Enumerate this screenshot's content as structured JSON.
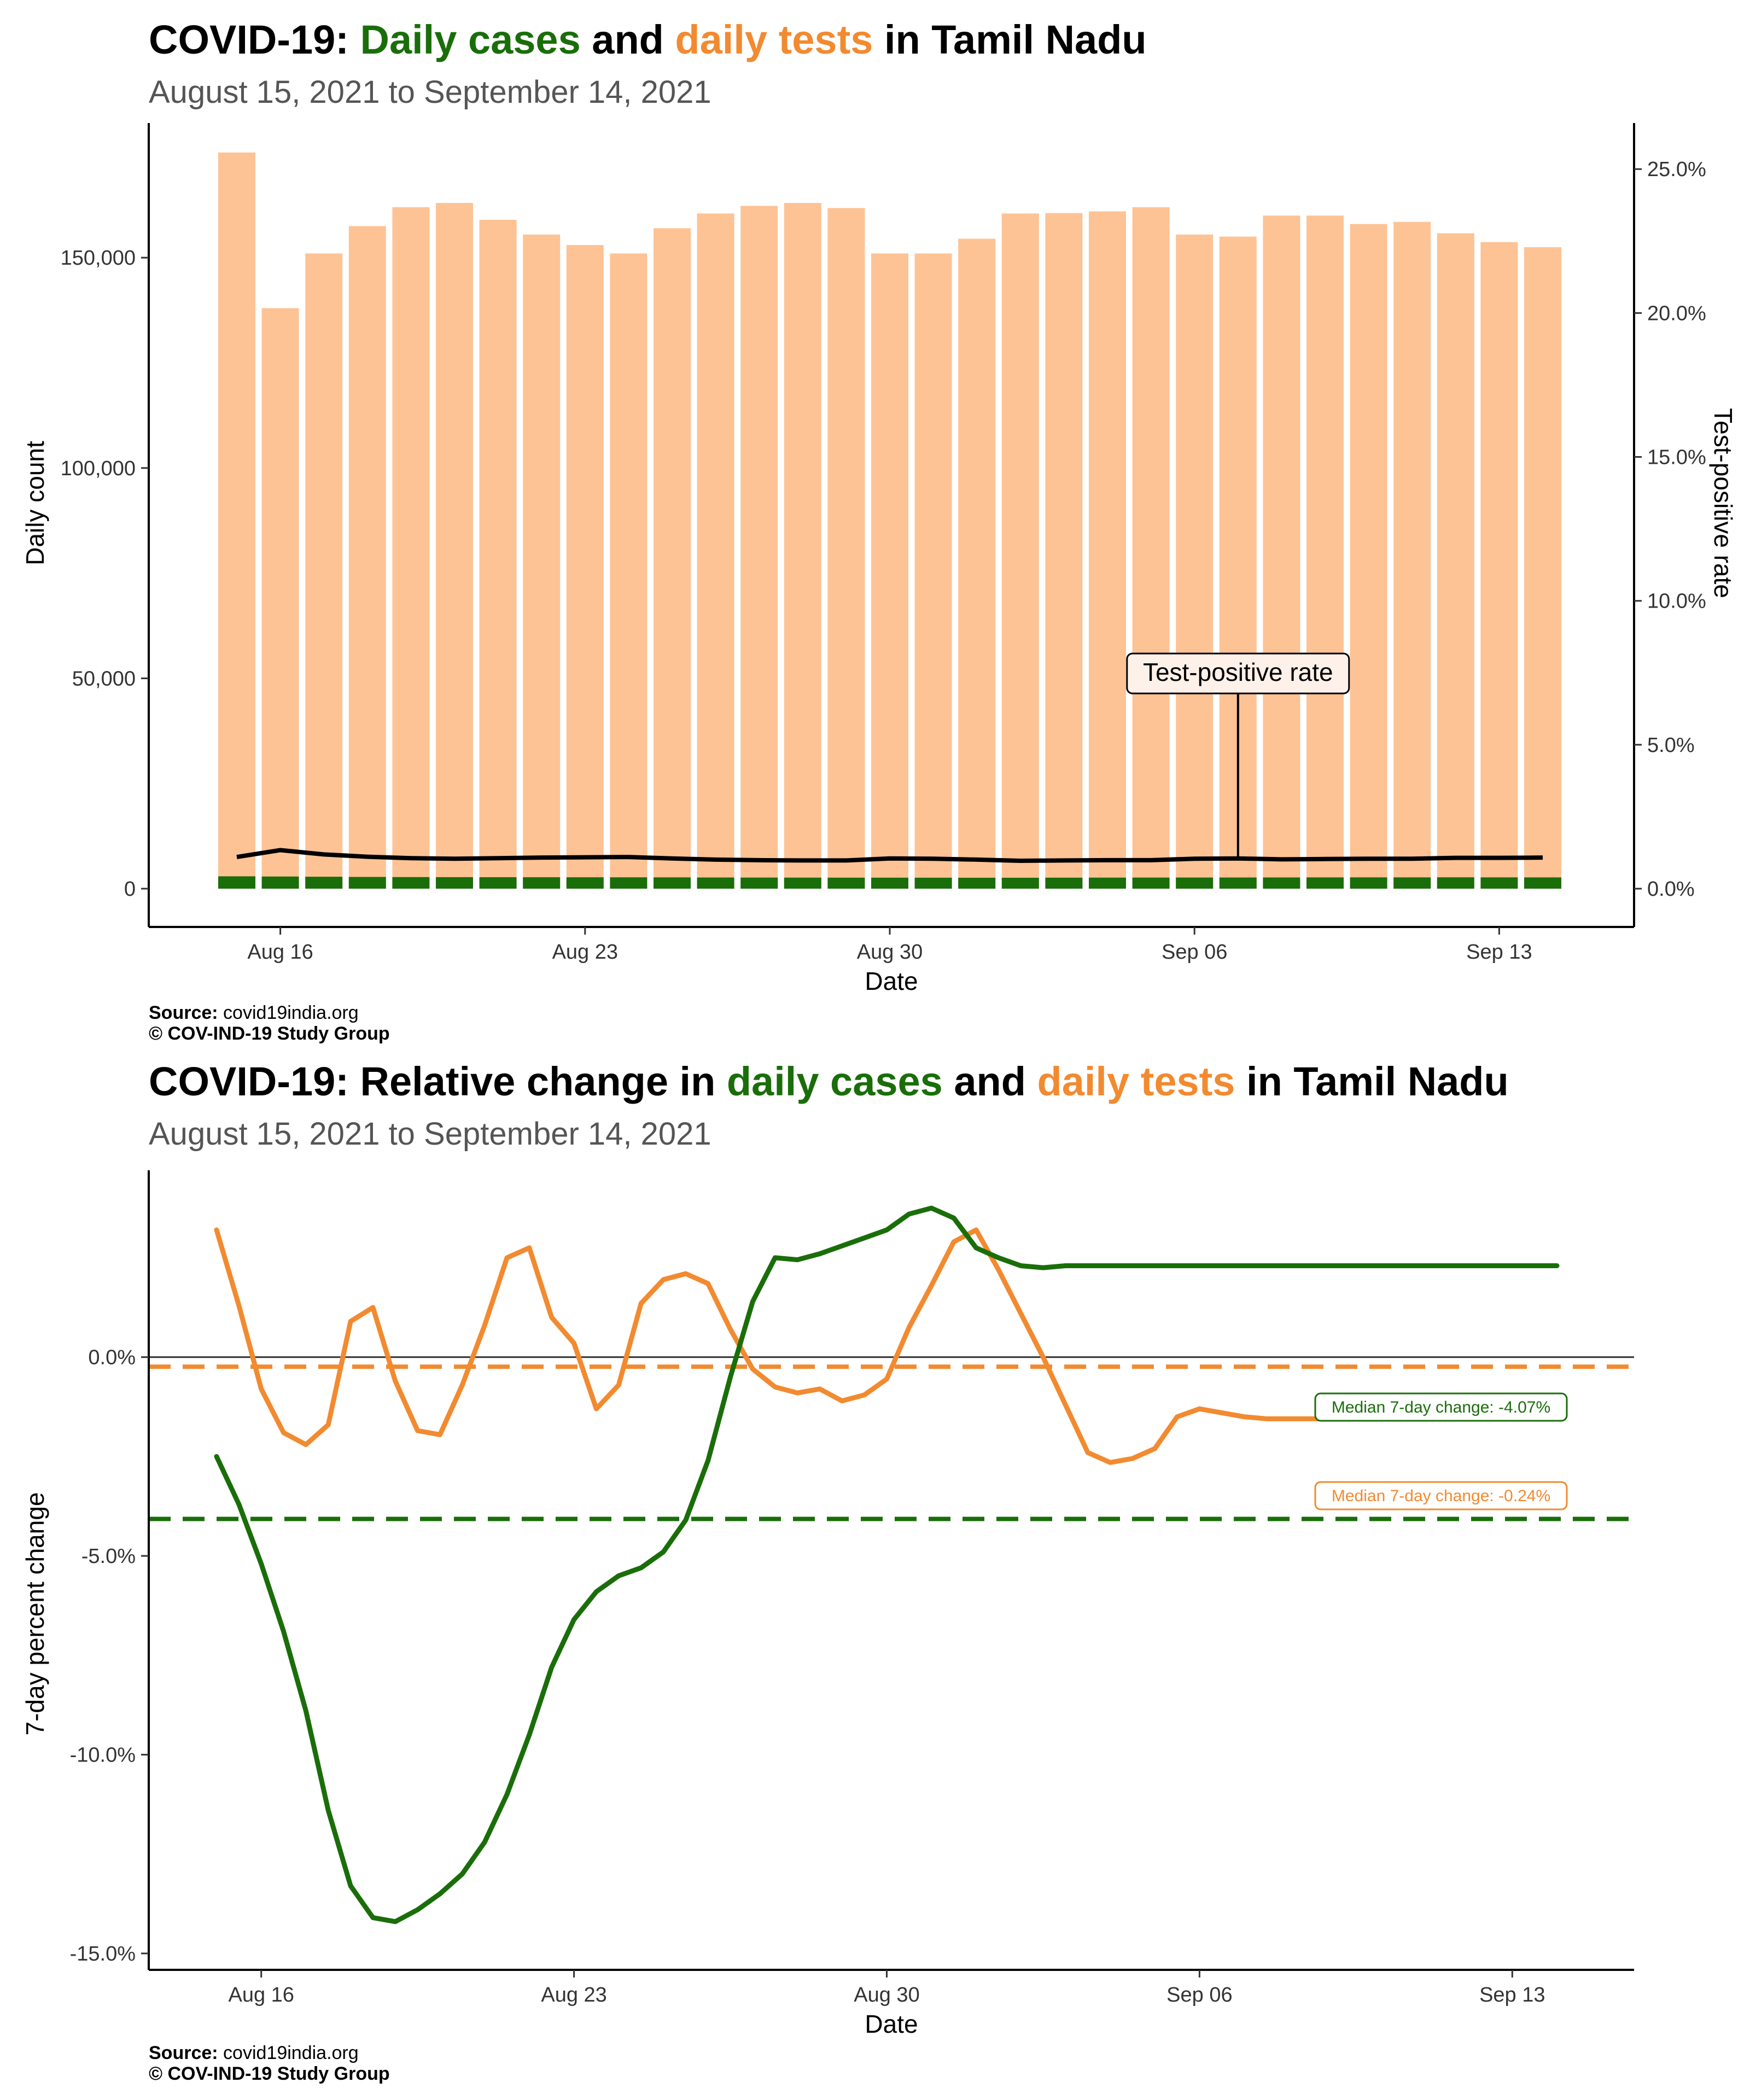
{
  "panel1": {
    "title_prefix": "COVID-19:",
    "title_cases": "Daily cases",
    "title_and": "and",
    "title_tests": "daily tests",
    "title_suffix": "in Tamil Nadu",
    "subtitle": "August 15, 2021 to September 14, 2021",
    "source_label": "Source:",
    "source_value": "covid19india.org",
    "copyright": "© COV-IND-19 Study Group"
  },
  "panel2": {
    "title_prefix": "COVID-19: Relative change in",
    "title_cases": "daily cases",
    "title_and": "and",
    "title_tests": "daily tests",
    "title_suffix": "in Tamil Nadu",
    "subtitle": "August 15, 2021 to September 14, 2021",
    "source_label": "Source:",
    "source_value": "covid19india.org",
    "copyright": "© COV-IND-19 Study Group"
  },
  "colors": {
    "cases": "#1a6e0a",
    "tests": "#f28a30",
    "tests_bar": "#fdc395",
    "tpr_line": "#000000"
  },
  "chart_data": [
    {
      "type": "bar",
      "xlabel": "Date",
      "ylabel": "Daily count",
      "y2label": "Test-positive rate",
      "x_ticks": [
        "Aug 16",
        "Aug 23",
        "Aug 30",
        "Sep 06",
        "Sep 13"
      ],
      "x_tick_index": [
        1,
        8,
        15,
        22,
        29
      ],
      "y_ticks": [
        "0",
        "50,000",
        "100,000",
        "150,000"
      ],
      "y_tick_values": [
        0,
        50000,
        100000,
        150000
      ],
      "y2_ticks": [
        "0.0%",
        "5.0%",
        "10.0%",
        "15.0%",
        "20.0%",
        "25.0%"
      ],
      "y2_tick_values": [
        0,
        5,
        10,
        15,
        20,
        25
      ],
      "ylim": [
        0,
        182000
      ],
      "y2lim": [
        0,
        26.6
      ],
      "annotation": "Test-positive rate",
      "annotation_index": 23,
      "categories": [
        "Aug 15",
        "Aug 16",
        "Aug 17",
        "Aug 18",
        "Aug 19",
        "Aug 20",
        "Aug 21",
        "Aug 22",
        "Aug 23",
        "Aug 24",
        "Aug 25",
        "Aug 26",
        "Aug 27",
        "Aug 28",
        "Aug 29",
        "Aug 30",
        "Aug 31",
        "Sep 01",
        "Sep 02",
        "Sep 03",
        "Sep 04",
        "Sep 05",
        "Sep 06",
        "Sep 07",
        "Sep 08",
        "Sep 09",
        "Sep 10",
        "Sep 11",
        "Sep 12",
        "Sep 13",
        "Sep 14"
      ],
      "series": [
        {
          "name": "daily tests",
          "values": [
            175000,
            138000,
            151000,
            157500,
            162000,
            163000,
            159000,
            155500,
            153000,
            151000,
            157000,
            160500,
            162300,
            163000,
            161800,
            151000,
            151000,
            154500,
            160500,
            160600,
            161000,
            162000,
            155500,
            155000,
            160000,
            160000,
            158000,
            158500,
            155800,
            153700,
            152500
          ]
        },
        {
          "name": "daily cases",
          "values": [
            1900,
            1850,
            1800,
            1750,
            1720,
            1700,
            1690,
            1680,
            1670,
            1660,
            1650,
            1620,
            1600,
            1590,
            1580,
            1580,
            1570,
            1560,
            1560,
            1580,
            1590,
            1600,
            1610,
            1620,
            1630,
            1640,
            1650,
            1650,
            1660,
            1650,
            1640
          ]
        },
        {
          "name": "Test-positive rate",
          "values": [
            1.1,
            1.34,
            1.19,
            1.11,
            1.06,
            1.04,
            1.06,
            1.08,
            1.09,
            1.1,
            1.05,
            1.01,
            0.99,
            0.98,
            0.98,
            1.05,
            1.04,
            1.01,
            0.97,
            0.98,
            0.99,
            0.99,
            1.04,
            1.05,
            1.02,
            1.03,
            1.04,
            1.04,
            1.07,
            1.07,
            1.08
          ]
        }
      ]
    },
    {
      "type": "line",
      "xlabel": "Date",
      "ylabel": "7-day percent change",
      "x_ticks": [
        "Aug 16",
        "Aug 23",
        "Aug 30",
        "Sep 06",
        "Sep 13"
      ],
      "x_tick_index": [
        1,
        8,
        15,
        22,
        29
      ],
      "y_ticks": [
        "-15.0%",
        "-10.0%",
        "-5.0%",
        "0.0%"
      ],
      "y_tick_values": [
        -15,
        -10,
        -5,
        0
      ],
      "ylim": [
        -15,
        4.7
      ],
      "x": [
        0,
        0.5,
        1,
        1.5,
        2,
        2.5,
        3,
        3.5,
        4,
        4.5,
        5,
        5.5,
        6,
        6.5,
        7,
        7.5,
        8,
        8.5,
        9,
        9.5,
        10,
        10.5,
        11,
        11.5,
        12,
        12.5,
        13,
        13.5,
        14,
        14.5,
        15,
        15.5,
        16,
        16.5,
        17,
        17.5,
        18,
        18.5,
        19,
        19.5,
        20,
        20.5,
        21,
        21.5,
        22,
        22.5,
        23,
        23.5,
        24,
        24.5,
        25,
        25.5,
        26,
        26.5,
        27,
        27.5,
        28,
        28.5,
        29,
        29.5,
        30
      ],
      "series": [
        {
          "name": "daily tests",
          "values": [
            3.2,
            1.3,
            -0.8,
            -1.9,
            -2.2,
            -1.7,
            0.9,
            1.25,
            -0.6,
            -1.85,
            -1.95,
            -0.7,
            0.8,
            2.5,
            2.75,
            1.0,
            0.35,
            -1.3,
            -0.7,
            1.35,
            1.95,
            2.1,
            1.85,
            0.7,
            -0.3,
            -0.75,
            -0.9,
            -0.8,
            -1.1,
            -0.95,
            -0.55,
            0.75,
            1.8,
            2.9,
            3.2,
            2.2,
            1.1,
            0.0,
            -1.2,
            -2.4,
            -2.65,
            -2.55,
            -2.3,
            -1.5,
            -1.3,
            -1.4,
            -1.5,
            -1.55,
            -1.55,
            -1.55,
            -1.55,
            -1.55,
            -1.55,
            -1.55,
            -1.55,
            -1.55,
            -1.55,
            -1.55,
            -1.55,
            -1.55,
            -1.55
          ]
        },
        {
          "name": "daily cases",
          "values": [
            -2.5,
            -3.7,
            -5.2,
            -6.9,
            -8.9,
            -11.4,
            -13.3,
            -14.1,
            -14.2,
            -13.9,
            -13.5,
            -13.0,
            -12.2,
            -11.0,
            -9.5,
            -7.8,
            -6.6,
            -5.9,
            -5.5,
            -5.3,
            -4.9,
            -4.1,
            -2.6,
            -0.5,
            1.4,
            2.5,
            2.45,
            2.6,
            2.8,
            3.0,
            3.2,
            3.6,
            3.75,
            3.5,
            2.75,
            2.5,
            2.3,
            2.25,
            2.3,
            2.3,
            2.3,
            2.3,
            2.3,
            2.3,
            2.3,
            2.3,
            2.3,
            2.3,
            2.3,
            2.3,
            2.3,
            2.3,
            2.3,
            2.3,
            2.3,
            2.3,
            2.3,
            2.3,
            2.3,
            2.3,
            2.3
          ]
        }
      ],
      "reference_lines": [
        {
          "name": "daily tests",
          "value": -0.24,
          "label": "Median 7-day change: -0.24%"
        },
        {
          "name": "daily cases",
          "value": -4.07,
          "label": "Median 7-day change: -4.07%"
        }
      ]
    }
  ]
}
